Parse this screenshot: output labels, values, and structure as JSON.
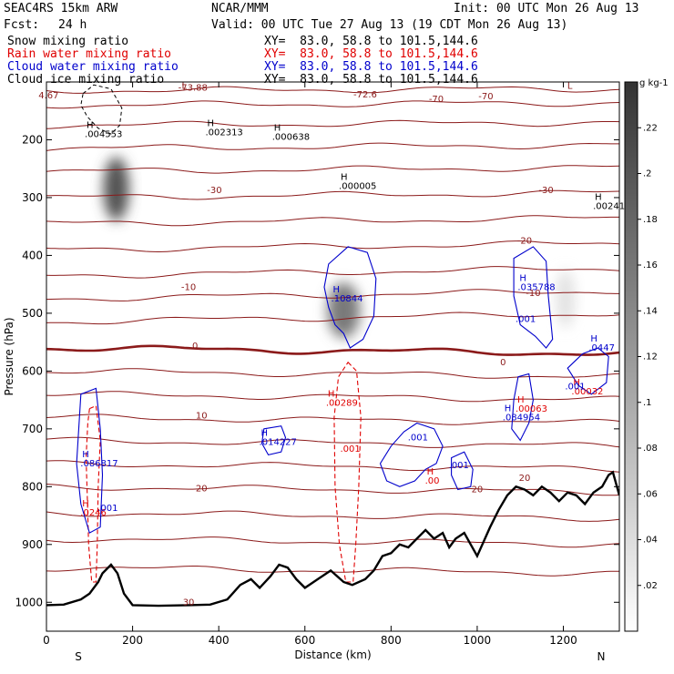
{
  "header": {
    "model": "SEAC4RS 15km ARW",
    "center": "NCAR/MMM",
    "init": "Init: 00 UTC Mon 26 Aug 13",
    "fcst_label": "Fcst:",
    "fcst_value": "24 h",
    "valid": "Valid: 00 UTC Tue 27 Aug 13 (19 CDT Mon 26 Aug 13)"
  },
  "legend": [
    {
      "name": "Snow mixing ratio",
      "xy": "XY=  83.0, 58.8 to 101.5,144.6",
      "color": "#000000"
    },
    {
      "name": "Rain water mixing ratio",
      "xy": "XY=  83.0, 58.8 to 101.5,144.6",
      "color": "#e00000"
    },
    {
      "name": "Cloud water mixing ratio",
      "xy": "XY=  83.0, 58.8 to 101.5,144.6",
      "color": "#0000cc"
    },
    {
      "name": "Cloud ice mixing ratio",
      "xy": "XY=  83.0, 58.8 to 101.5,144.6",
      "color": "#000000"
    }
  ],
  "chart_data": {
    "type": "contour cross-section",
    "xlabel": "Distance (km)",
    "ylabel": "Pressure (hPa)",
    "xlim": [
      0,
      1330
    ],
    "ylim": [
      1050,
      100
    ],
    "x_ticks": [
      0,
      200,
      400,
      600,
      800,
      1000,
      1200
    ],
    "y_ticks": [
      1000,
      900,
      800,
      700,
      600,
      500,
      400,
      300,
      200
    ],
    "endpoints": {
      "left": "S",
      "right": "N"
    },
    "colorbar": {
      "unit": "g kg-1",
      "ticks": [
        ".02",
        ".04",
        ".06",
        ".08",
        ".1",
        ".12",
        ".14",
        ".16",
        ".18",
        ".2",
        ".22"
      ],
      "range": [
        0,
        0.24
      ]
    },
    "temperature_contours": [
      {
        "p": 115,
        "label": "-73.88",
        "lx": 340,
        "lp": 115
      },
      {
        "p": 140,
        "label": "",
        "lx": 0,
        "lp": 0
      },
      {
        "p": 175,
        "label": "",
        "lx": 0,
        "lp": 0
      },
      {
        "p": 215,
        "label": "",
        "lx": 0,
        "lp": 0
      },
      {
        "p": 255,
        "label": "-30",
        "lx": 390,
        "lp": 292
      },
      {
        "p": 300,
        "label": "",
        "lx": 0,
        "lp": 0
      },
      {
        "p": 345,
        "label": "-20",
        "lx": 1110,
        "lp": 380
      },
      {
        "p": 390,
        "label": "",
        "lx": 0,
        "lp": 0
      },
      {
        "p": 435,
        "label": "-10",
        "lx": 330,
        "lp": 460
      },
      {
        "p": 475,
        "label": "",
        "lx": 0,
        "lp": 0
      },
      {
        "p": 515,
        "label": "",
        "lx": 0,
        "lp": 0
      },
      {
        "p": 560,
        "label": "0",
        "lx": 345,
        "lp": 562
      },
      {
        "p": 600,
        "label": "",
        "lx": 0,
        "lp": 0
      },
      {
        "p": 640,
        "label": "",
        "lx": 0,
        "lp": 0
      },
      {
        "p": 680,
        "label": "10",
        "lx": 360,
        "lp": 682
      },
      {
        "p": 720,
        "label": "",
        "lx": 0,
        "lp": 0
      },
      {
        "p": 760,
        "label": "",
        "lx": 0,
        "lp": 0
      },
      {
        "p": 800,
        "label": "20",
        "lx": 360,
        "lp": 808
      },
      {
        "p": 845,
        "label": "",
        "lx": 0,
        "lp": 0
      },
      {
        "p": 890,
        "label": "",
        "lx": 0,
        "lp": 0
      },
      {
        "p": 940,
        "label": "",
        "lx": 0,
        "lp": 0
      }
    ],
    "extra_labels": [
      {
        "text": "4.67",
        "x": 5,
        "p": 128,
        "color": "#8b1a1a"
      },
      {
        "text": "L",
        "x": 320,
        "p": 112,
        "color": "#8b1a1a"
      },
      {
        "text": "-72.6",
        "x": 740,
        "p": 127,
        "color": "#8b1a1a"
      },
      {
        "text": "-70",
        "x": 905,
        "p": 135,
        "color": "#8b1a1a"
      },
      {
        "text": "-70",
        "x": 1020,
        "p": 130,
        "color": "#8b1a1a"
      },
      {
        "text": "L",
        "x": 1215,
        "p": 112,
        "color": "#8b1a1a"
      },
      {
        "text": "-30",
        "x": 1160,
        "p": 292,
        "color": "#8b1a1a"
      },
      {
        "text": "-10",
        "x": 1130,
        "p": 470,
        "color": "#8b1a1a"
      },
      {
        "text": "0",
        "x": 1060,
        "p": 590,
        "color": "#8b1a1a"
      },
      {
        "text": "20",
        "x": 1000,
        "p": 810,
        "color": "#8b1a1a"
      },
      {
        "text": "20",
        "x": 1110,
        "p": 790,
        "color": "#8b1a1a"
      },
      {
        "text": "30",
        "x": 330,
        "p": 1005,
        "color": "#8b1a1a"
      }
    ],
    "maxima_labels": [
      {
        "h": "H",
        "value": ".004553",
        "x": 110,
        "p": 195,
        "color": "#000000"
      },
      {
        "h": "H",
        "value": ".002313",
        "x": 390,
        "p": 192,
        "color": "#000000"
      },
      {
        "h": "H",
        "value": ".000638",
        "x": 545,
        "p": 200,
        "color": "#000000"
      },
      {
        "h": "H",
        "value": ".000005",
        "x": 700,
        "p": 285,
        "color": "#000000"
      },
      {
        "h": "H",
        "value": ".00241",
        "x": 1290,
        "p": 320,
        "color": "#000000"
      },
      {
        "h": "H",
        "value": ".10844",
        "x": 682,
        "p": 480,
        "color": "#0000cc"
      },
      {
        "h": "H",
        "value": ".035788",
        "x": 1115,
        "p": 460,
        "color": "#0000cc"
      },
      {
        "h": "",
        "value": ".001",
        "x": 1110,
        "p": 515,
        "color": "#0000cc"
      },
      {
        "h": "H",
        "value": ".0447",
        "x": 1280,
        "p": 565,
        "color": "#0000cc"
      },
      {
        "h": "H",
        "value": ".00289",
        "x": 670,
        "p": 660,
        "color": "#e00000"
      },
      {
        "h": "",
        "value": ".001",
        "x": 703,
        "p": 740,
        "color": "#e00000"
      },
      {
        "h": "H",
        "value": ".00063",
        "x": 1110,
        "p": 670,
        "color": "#e00000"
      },
      {
        "h": "H",
        "value": ".00032",
        "x": 1240,
        "p": 640,
        "color": "#e00000"
      },
      {
        "h": "",
        "value": ".001",
        "x": 1225,
        "p": 632,
        "color": "#0000cc"
      },
      {
        "h": "H",
        "value": ".084954",
        "x": 1080,
        "p": 685,
        "color": "#0000cc"
      },
      {
        "h": "H",
        "value": ".014227",
        "x": 515,
        "p": 728,
        "color": "#0000cc"
      },
      {
        "h": "",
        "value": ".001",
        "x": 860,
        "p": 720,
        "color": "#0000cc"
      },
      {
        "h": "",
        "value": ".001",
        "x": 955,
        "p": 768,
        "color": "#0000cc"
      },
      {
        "h": "H",
        "value": ".00",
        "x": 900,
        "p": 795,
        "color": "#e00000"
      },
      {
        "h": "H",
        "value": ".086817",
        "x": 100,
        "p": 765,
        "color": "#0000cc"
      },
      {
        "h": "H",
        "value": ".0246",
        "x": 100,
        "p": 850,
        "color": "#e00000"
      },
      {
        "h": "",
        "value": ".001",
        "x": 140,
        "p": 842,
        "color": "#0000cc"
      }
    ],
    "terrain_profile": [
      [
        0,
        1005
      ],
      [
        40,
        1004
      ],
      [
        80,
        995
      ],
      [
        100,
        985
      ],
      [
        120,
        965
      ],
      [
        130,
        950
      ],
      [
        150,
        935
      ],
      [
        165,
        950
      ],
      [
        180,
        985
      ],
      [
        200,
        1005
      ],
      [
        260,
        1006
      ],
      [
        330,
        1005
      ],
      [
        380,
        1004
      ],
      [
        420,
        995
      ],
      [
        450,
        970
      ],
      [
        475,
        960
      ],
      [
        495,
        975
      ],
      [
        520,
        955
      ],
      [
        540,
        935
      ],
      [
        560,
        940
      ],
      [
        580,
        960
      ],
      [
        600,
        975
      ],
      [
        630,
        960
      ],
      [
        660,
        945
      ],
      [
        690,
        965
      ],
      [
        710,
        970
      ],
      [
        740,
        960
      ],
      [
        760,
        945
      ],
      [
        780,
        920
      ],
      [
        800,
        915
      ],
      [
        820,
        900
      ],
      [
        840,
        905
      ],
      [
        860,
        890
      ],
      [
        880,
        875
      ],
      [
        900,
        890
      ],
      [
        920,
        880
      ],
      [
        935,
        905
      ],
      [
        950,
        890
      ],
      [
        970,
        880
      ],
      [
        985,
        900
      ],
      [
        1000,
        920
      ],
      [
        1015,
        895
      ],
      [
        1030,
        870
      ],
      [
        1050,
        840
      ],
      [
        1070,
        815
      ],
      [
        1090,
        800
      ],
      [
        1110,
        805
      ],
      [
        1130,
        815
      ],
      [
        1150,
        800
      ],
      [
        1170,
        810
      ],
      [
        1190,
        825
      ],
      [
        1210,
        810
      ],
      [
        1230,
        815
      ],
      [
        1250,
        830
      ],
      [
        1270,
        810
      ],
      [
        1290,
        800
      ],
      [
        1305,
        780
      ],
      [
        1315,
        775
      ],
      [
        1330,
        815
      ]
    ],
    "snow_maxima": [
      {
        "x": 162,
        "p": 285,
        "amp": 0.18,
        "sx": 30,
        "sp": 55
      },
      {
        "x": 690,
        "p": 495,
        "amp": 0.14,
        "sx": 38,
        "sp": 48
      },
      {
        "x": 1205,
        "p": 475,
        "amp": 0.03,
        "sx": 22,
        "sp": 50
      }
    ],
    "cloud_ice_outline": [
      [
        85,
        120
      ],
      [
        110,
        105
      ],
      [
        150,
        112
      ],
      [
        175,
        145
      ],
      [
        170,
        175
      ],
      [
        150,
        190
      ],
      [
        120,
        180
      ],
      [
        95,
        160
      ],
      [
        80,
        140
      ],
      [
        85,
        120
      ]
    ],
    "rain_outlines": [
      [
        [
          700,
          585
        ],
        [
          720,
          600
        ],
        [
          730,
          680
        ],
        [
          725,
          800
        ],
        [
          718,
          900
        ],
        [
          712,
          965
        ],
        [
          695,
          965
        ],
        [
          680,
          900
        ],
        [
          670,
          800
        ],
        [
          668,
          680
        ],
        [
          678,
          610
        ],
        [
          700,
          585
        ]
      ],
      [
        [
          100,
          665
        ],
        [
          115,
          660
        ],
        [
          125,
          720
        ],
        [
          120,
          800
        ],
        [
          118,
          900
        ],
        [
          115,
          965
        ],
        [
          105,
          965
        ],
        [
          98,
          900
        ],
        [
          95,
          820
        ],
        [
          92,
          750
        ],
        [
          96,
          690
        ],
        [
          100,
          665
        ]
      ]
    ],
    "cloud_water_outlines": [
      [
        [
          655,
          415
        ],
        [
          700,
          385
        ],
        [
          745,
          395
        ],
        [
          765,
          440
        ],
        [
          760,
          505
        ],
        [
          735,
          545
        ],
        [
          705,
          560
        ],
        [
          690,
          535
        ],
        [
          670,
          520
        ],
        [
          655,
          490
        ],
        [
          645,
          455
        ],
        [
          655,
          415
        ]
      ],
      [
        [
          1085,
          405
        ],
        [
          1130,
          385
        ],
        [
          1160,
          410
        ],
        [
          1165,
          470
        ],
        [
          1175,
          545
        ],
        [
          1160,
          560
        ],
        [
          1135,
          540
        ],
        [
          1100,
          520
        ],
        [
          1085,
          470
        ],
        [
          1085,
          405
        ]
      ],
      [
        [
          1210,
          595
        ],
        [
          1245,
          570
        ],
        [
          1280,
          560
        ],
        [
          1305,
          575
        ],
        [
          1300,
          620
        ],
        [
          1265,
          640
        ],
        [
          1235,
          625
        ],
        [
          1210,
          595
        ]
      ],
      [
        [
          1095,
          610
        ],
        [
          1120,
          605
        ],
        [
          1130,
          650
        ],
        [
          1120,
          690
        ],
        [
          1100,
          720
        ],
        [
          1080,
          700
        ],
        [
          1085,
          650
        ],
        [
          1095,
          610
        ]
      ],
      [
        [
          505,
          700
        ],
        [
          545,
          695
        ],
        [
          555,
          715
        ],
        [
          545,
          740
        ],
        [
          515,
          745
        ],
        [
          500,
          725
        ],
        [
          505,
          700
        ]
      ],
      [
        [
          80,
          640
        ],
        [
          115,
          630
        ],
        [
          125,
          700
        ],
        [
          130,
          780
        ],
        [
          125,
          870
        ],
        [
          100,
          880
        ],
        [
          80,
          830
        ],
        [
          70,
          760
        ],
        [
          80,
          640
        ]
      ],
      [
        [
          775,
          760
        ],
        [
          800,
          730
        ],
        [
          830,
          705
        ],
        [
          860,
          690
        ],
        [
          900,
          700
        ],
        [
          920,
          730
        ],
        [
          905,
          760
        ],
        [
          880,
          770
        ],
        [
          855,
          790
        ],
        [
          820,
          800
        ],
        [
          790,
          790
        ],
        [
          775,
          760
        ]
      ],
      [
        [
          940,
          750
        ],
        [
          970,
          740
        ],
        [
          990,
          770
        ],
        [
          985,
          800
        ],
        [
          955,
          805
        ],
        [
          940,
          780
        ],
        [
          940,
          750
        ]
      ]
    ]
  }
}
